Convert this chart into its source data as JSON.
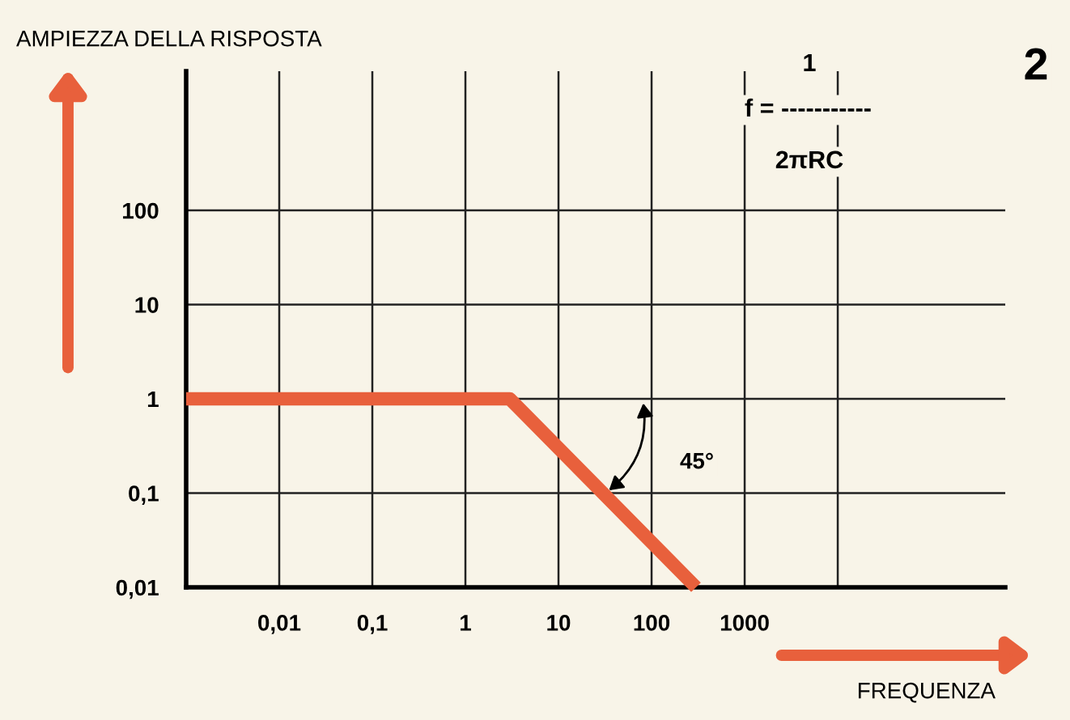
{
  "chart_data": {
    "type": "line",
    "xlabel": "FREQUENZA",
    "ylabel": "AMPIEZZA DELLA RISPOSTA",
    "x": [
      0.001,
      3,
      300
    ],
    "series": [
      {
        "color": "#e8603c",
        "values": [
          1,
          1,
          0.01
        ]
      }
    ],
    "log": "xy",
    "xlim": [
      0.001,
      630000
    ],
    "ylim": [
      0.01,
      3000
    ],
    "xticks": [
      {
        "value": 0.01,
        "label": "0,01"
      },
      {
        "value": 0.1,
        "label": "0,1"
      },
      1,
      10,
      100,
      1000,
      {
        "value": 10000,
        "label": null
      }
    ],
    "yticks": [
      {
        "value": 0.01,
        "label": "0,01"
      },
      {
        "value": 0.1,
        "label": "0,1"
      },
      1,
      10,
      100
    ],
    "grid": true,
    "marker": "none",
    "line_style": "solid",
    "annotations": [
      "45°",
      "1",
      "f = -----------",
      "2πRC",
      "2"
    ]
  }
}
